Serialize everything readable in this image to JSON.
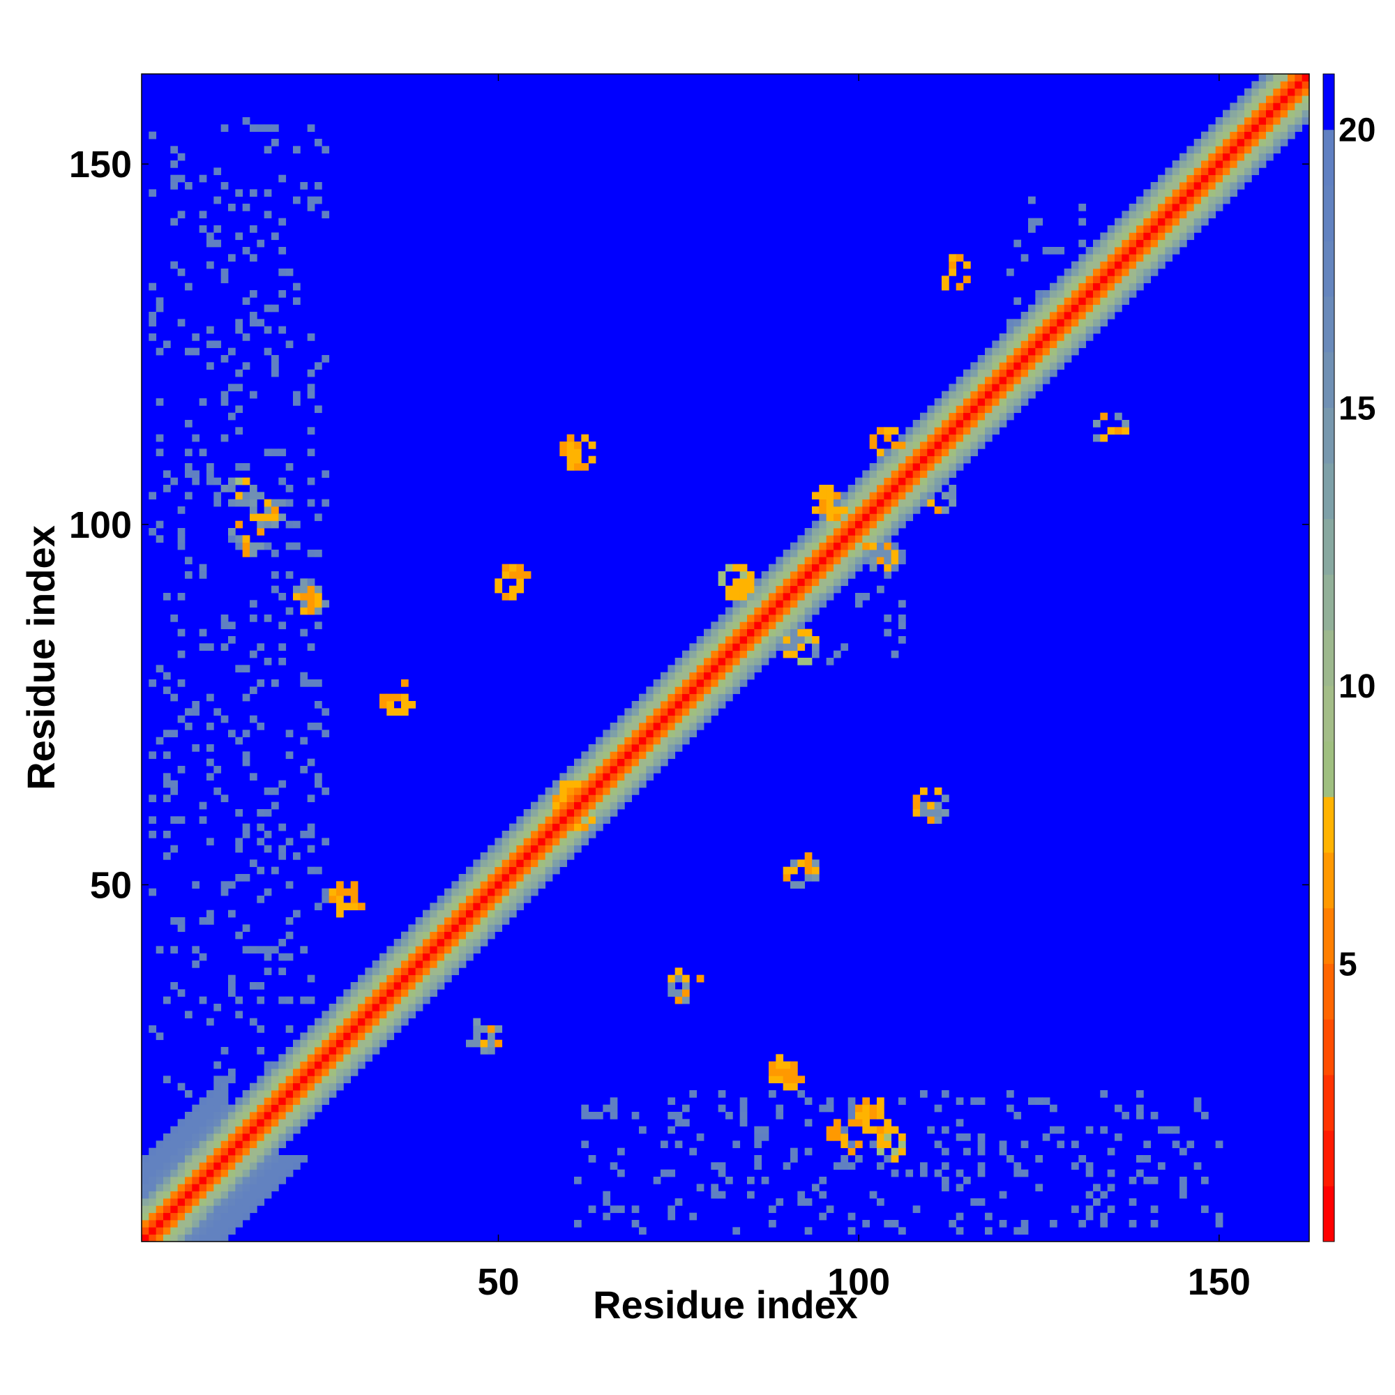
{
  "chart_data": {
    "type": "heatmap",
    "title": "",
    "xlabel": "Residue index",
    "ylabel": "Residue index",
    "n_residues": 162,
    "xlim": [
      1,
      162
    ],
    "ylim": [
      1,
      162
    ],
    "x_ticks": [
      50,
      100,
      150
    ],
    "y_ticks": [
      50,
      100,
      150
    ],
    "colorbar": {
      "ticks": [
        5,
        10,
        15,
        20
      ],
      "range": [
        0,
        21
      ],
      "levels": [
        {
          "max": 1,
          "color": "#ff0000"
        },
        {
          "max": 2,
          "color": "#ff1a00"
        },
        {
          "max": 3,
          "color": "#ff3300"
        },
        {
          "max": 4,
          "color": "#ff4d00"
        },
        {
          "max": 5,
          "color": "#ff6600"
        },
        {
          "max": 6,
          "color": "#ff7f00"
        },
        {
          "max": 7,
          "color": "#ff9900"
        },
        {
          "max": 8,
          "color": "#ffb300"
        },
        {
          "max": 9,
          "color": "#9fbf80"
        },
        {
          "max": 10,
          "color": "#a3bd88"
        },
        {
          "max": 11,
          "color": "#9db88e"
        },
        {
          "max": 12,
          "color": "#92b099"
        },
        {
          "max": 13,
          "color": "#88a8a0"
        },
        {
          "max": 14,
          "color": "#7ea0a8"
        },
        {
          "max": 15,
          "color": "#7898ae"
        },
        {
          "max": 16,
          "color": "#7090b4"
        },
        {
          "max": 17,
          "color": "#6a8aba"
        },
        {
          "max": 18,
          "color": "#6585be"
        },
        {
          "max": 19,
          "color": "#6282c0"
        },
        {
          "max": 20,
          "color": "#6080c2"
        },
        {
          "max": 21,
          "color": "#0000ff"
        }
      ]
    },
    "background_value": 21,
    "diagonal_band": [
      {
        "offset": 0,
        "value": 0.5
      },
      {
        "offset": 1,
        "value": 3.8
      },
      {
        "offset": 2,
        "value": 5.5
      },
      {
        "offset": 3,
        "value": 8.7
      },
      {
        "offset": 4,
        "value": 10.5
      },
      {
        "offset": 5,
        "value": 12.5
      },
      {
        "offset": 6,
        "value": 16.5
      }
    ],
    "contact_clusters": [
      {
        "i": 28,
        "j": 47,
        "value": 6.5
      },
      {
        "i": 35,
        "j": 75,
        "value": 6.5
      },
      {
        "i": 51,
        "j": 91,
        "value": 6.5
      },
      {
        "i": 59,
        "j": 61,
        "value": 6.5
      },
      {
        "i": 82,
        "j": 91,
        "value": 7.0
      },
      {
        "i": 97,
        "j": 14,
        "value": 6.5
      },
      {
        "i": 103,
        "j": 13,
        "value": 7.0
      },
      {
        "i": 101,
        "j": 17,
        "value": 6.5
      },
      {
        "i": 89,
        "j": 23,
        "value": 6.5
      },
      {
        "i": 60,
        "j": 109,
        "value": 6.5
      },
      {
        "i": 95,
        "j": 102,
        "value": 6.5
      },
      {
        "i": 103,
        "j": 111,
        "value": 6.5
      },
      {
        "i": 112,
        "j": 134,
        "value": 6.5
      }
    ],
    "sparse_regions": [
      {
        "i_range": [
          1,
          25
        ],
        "j_range": [
          20,
          155
        ],
        "value": 18.5
      },
      {
        "i_range": [
          60,
          150
        ],
        "j_range": [
          1,
          20
        ],
        "value": 18.5
      },
      {
        "i_range": [
          120,
          130
        ],
        "j_range": [
          125,
          145
        ],
        "value": 17.0
      },
      {
        "i_range": [
          95,
          105
        ],
        "j_range": [
          80,
          100
        ],
        "value": 17.0
      }
    ]
  }
}
